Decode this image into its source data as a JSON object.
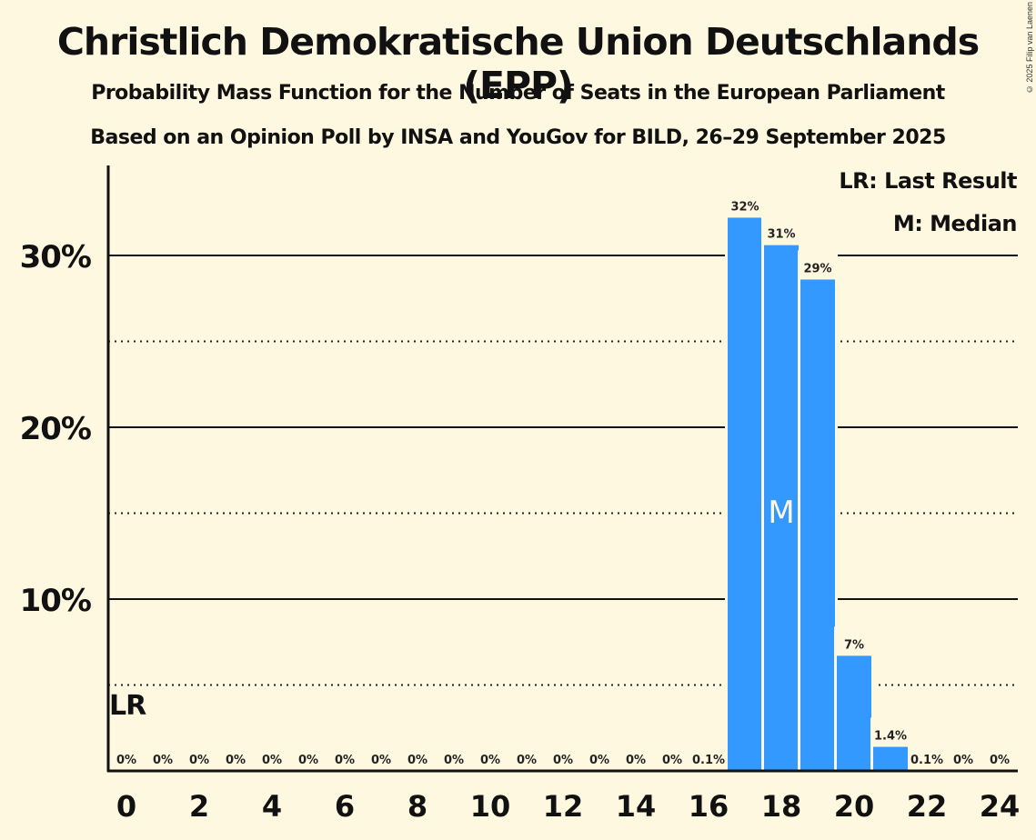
{
  "header": {
    "title": "Christlich Demokratische Union Deutschlands (EPP)",
    "subtitle": "Probability Mass Function for the Number of Seats in the European Parliament",
    "source": "Based on an Opinion Poll by INSA and YouGov for BILD, 26–29 September 2025",
    "copyright": "© 2025 Filip van Laenen"
  },
  "legend": {
    "last_result": "LR: Last Result",
    "median": "M: Median"
  },
  "colors": {
    "bar": "#3399ff",
    "background": "#fff8e1",
    "axis": "#111111"
  },
  "chart_data": {
    "type": "bar",
    "title": "Christlich Demokratische Union Deutschlands (EPP)",
    "xlabel": "",
    "ylabel": "",
    "x": [
      0,
      1,
      2,
      3,
      4,
      5,
      6,
      7,
      8,
      9,
      10,
      11,
      12,
      13,
      14,
      15,
      16,
      17,
      18,
      19,
      20,
      21,
      22,
      23,
      24
    ],
    "values": [
      0,
      0,
      0,
      0,
      0,
      0,
      0,
      0,
      0,
      0,
      0,
      0,
      0,
      0,
      0,
      0,
      0.1,
      32.2,
      30.6,
      28.6,
      6.7,
      1.4,
      0.1,
      0,
      0
    ],
    "labels": [
      "0%",
      "0%",
      "0%",
      "0%",
      "0%",
      "0%",
      "0%",
      "0%",
      "0%",
      "0%",
      "0%",
      "0%",
      "0%",
      "0%",
      "0%",
      "0%",
      "0.1%",
      "32%",
      "31%",
      "29%",
      "7%",
      "1.4%",
      "0.1%",
      "0%",
      "0%"
    ],
    "x_ticks": [
      "0",
      "2",
      "4",
      "6",
      "8",
      "10",
      "12",
      "14",
      "16",
      "18",
      "20",
      "22",
      "24"
    ],
    "x_tick_values": [
      0,
      2,
      4,
      6,
      8,
      10,
      12,
      14,
      16,
      18,
      20,
      22,
      24
    ],
    "y_ticks": [
      "10%",
      "20%",
      "30%"
    ],
    "y_tick_values": [
      10,
      20,
      30
    ],
    "y_minor_gridlines": [
      5,
      15,
      25
    ],
    "ylim": [
      0,
      35
    ],
    "xlim": [
      -0.5,
      24.5
    ],
    "grid": true,
    "last_result_seat": 0,
    "last_result_label": "LR",
    "median_seat": 18,
    "median_label": "M",
    "legend_position": "top-right"
  }
}
